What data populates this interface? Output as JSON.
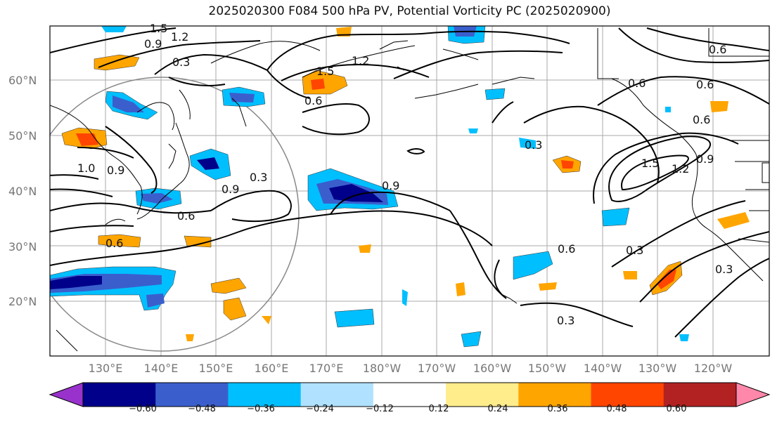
{
  "title": "2025020300 F084 500 hPa PV, Potential Vorticity PC (2025020900)",
  "map": {
    "lat_labels": [
      "20°N",
      "30°N",
      "40°N",
      "50°N",
      "60°N"
    ],
    "lon_labels": [
      "130°E",
      "140°E",
      "150°E",
      "160°E",
      "170°E",
      "180°W",
      "170°W",
      "160°W",
      "150°W",
      "140°W",
      "130°W",
      "120°W"
    ],
    "contour_labels": [
      "1.5",
      "1.2",
      "0.9",
      "0.3",
      "0.6",
      "1.5",
      "1.2",
      "0.6",
      "0.3",
      "0.9",
      "0.6",
      "0.9",
      "0.6",
      "0.6",
      "0.6",
      "0.9",
      "1.5",
      "1.2",
      "0.6",
      "0.3",
      "0.3",
      "0.3",
      "0.6",
      "0.3",
      "1.0",
      "0.9"
    ]
  },
  "colorbar": {
    "ticks": [
      "−0.60",
      "−0.48",
      "−0.36",
      "−0.24",
      "−0.12",
      "0.12",
      "0.24",
      "0.36",
      "0.48",
      "0.60"
    ],
    "colors": [
      "#9932cc",
      "#00008b",
      "#3a5fcd",
      "#00bfff",
      "#b0e2ff",
      "#ffffff",
      "#ffec8b",
      "#ffa500",
      "#ff4500",
      "#b22222",
      "#ff88aa"
    ]
  }
}
